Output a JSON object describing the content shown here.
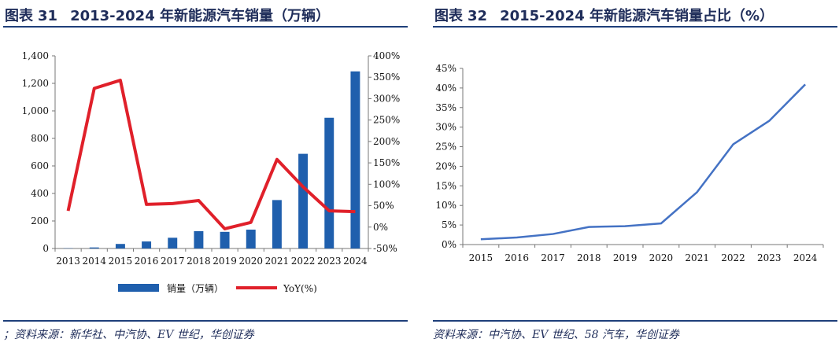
{
  "left": {
    "title_prefix": "图表",
    "title_number": "31",
    "title_text": "2013-2024 年新能源汽车销量（万辆）",
    "source": "；资料来源：新华社、中汽协、EV 世纪，华创证券"
  },
  "right": {
    "title_prefix": "图表",
    "title_number": "32",
    "title_text": "2015-2024 年新能源汽车销量占比（%）",
    "source": "资料来源：中汽协、EV 世纪、58 汽车，华创证券"
  },
  "chart_data": [
    {
      "type": "bar",
      "categories": [
        "2013",
        "2014",
        "2015",
        "2016",
        "2017",
        "2018",
        "2019",
        "2020",
        "2021",
        "2022",
        "2023",
        "2024"
      ],
      "series": [
        {
          "name": "销量（万辆）",
          "type": "bar",
          "axis": "left",
          "color": "#1f5fad",
          "values": [
            1.8,
            7.5,
            33,
            51,
            78,
            126,
            121,
            137,
            352,
            688,
            950,
            1287
          ]
        },
        {
          "name": "YoY(%)",
          "type": "line",
          "axis": "right",
          "color": "#e0202a",
          "values": [
            37.9,
            324,
            343,
            53,
            55,
            62,
            -4,
            11,
            158,
            94,
            38,
            36
          ]
        }
      ],
      "y_left": {
        "ticks": [
          "0",
          "200",
          "400",
          "600",
          "800",
          "1,000",
          "1,200",
          "1,400"
        ],
        "min": 0,
        "max": 1400
      },
      "y_right": {
        "ticks": [
          "-50%",
          "0%",
          "50%",
          "100%",
          "150%",
          "200%",
          "250%",
          "300%",
          "350%",
          "400%"
        ],
        "min": -50,
        "max": 400
      },
      "legend": {
        "position": "bottom",
        "items": [
          "销量（万辆）",
          "YoY(%)"
        ]
      },
      "grid": false
    },
    {
      "type": "line",
      "categories": [
        "2015",
        "2016",
        "2017",
        "2018",
        "2019",
        "2020",
        "2021",
        "2022",
        "2023",
        "2024"
      ],
      "series": [
        {
          "color": "#4472c4",
          "values": [
            1.35,
            1.8,
            2.7,
            4.5,
            4.7,
            5.4,
            13.4,
            25.6,
            31.6,
            40.9
          ]
        }
      ],
      "y_axis": {
        "ticks": [
          "0%",
          "5%",
          "10%",
          "15%",
          "20%",
          "25%",
          "30%",
          "35%",
          "40%",
          "45%"
        ],
        "min": 0,
        "max": 45
      },
      "grid": false
    }
  ]
}
